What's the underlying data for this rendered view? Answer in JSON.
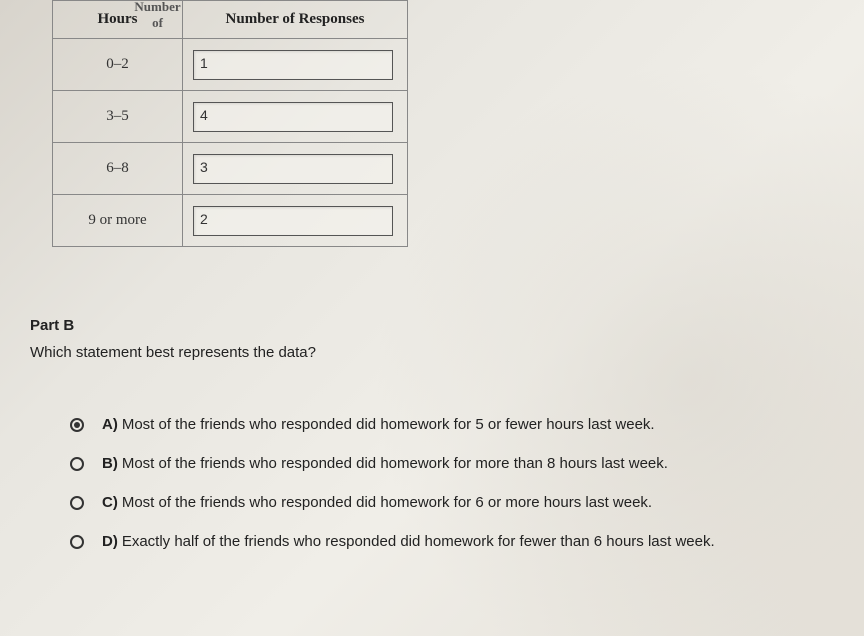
{
  "table": {
    "header_partial": "Number of",
    "col1_header": "Hours",
    "col2_header": "Number of Responses",
    "rows": [
      {
        "hours": "0–2",
        "responses": "1"
      },
      {
        "hours": "3–5",
        "responses": "4"
      },
      {
        "hours": "6–8",
        "responses": "3"
      },
      {
        "hours": "9 or more",
        "responses": "2"
      }
    ]
  },
  "partB": {
    "label": "Part B",
    "question": "Which statement best represents the data?",
    "options": [
      {
        "letter": "A)",
        "text": "Most of the friends who responded did homework for 5 or fewer hours last week.",
        "selected": true
      },
      {
        "letter": "B)",
        "text": "Most of the friends who responded did homework for more than 8 hours last week.",
        "selected": false
      },
      {
        "letter": "C)",
        "text": "Most of the friends who responded did homework for 6 or more hours last week.",
        "selected": false
      },
      {
        "letter": "D)",
        "text": "Exactly half of the friends who responded did homework for fewer than 6 hours last week.",
        "selected": false
      }
    ]
  },
  "colors": {
    "border": "#888",
    "text": "#222",
    "input_border": "#555"
  }
}
